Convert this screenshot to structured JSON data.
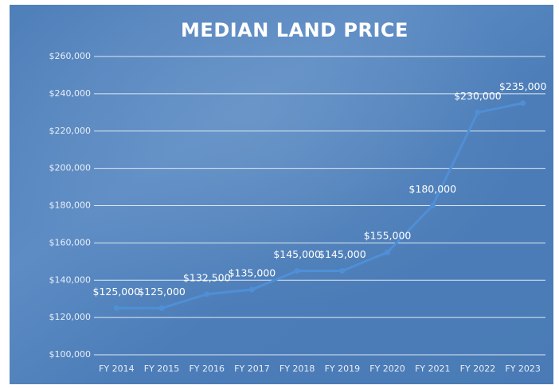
{
  "chart_data": {
    "type": "line",
    "title": "MEDIAN LAND PRICE",
    "categories": [
      "FY 2014",
      "FY 2015",
      "FY 2016",
      "FY 2017",
      "FY 2018",
      "FY 2019",
      "FY 2020",
      "FY 2021",
      "FY 2022",
      "FY 2023"
    ],
    "values": [
      125000,
      125000,
      132500,
      135000,
      145000,
      145000,
      155000,
      180000,
      230000,
      235000
    ],
    "value_labels": [
      "$125,000",
      "$125,000",
      "$132,500",
      "$135,000",
      "$145,000",
      "$145,000",
      "$155,000",
      "$180,000",
      "$230,000",
      "$235,000"
    ],
    "color": "#4f8fd6",
    "ylim": [
      100000,
      260000
    ],
    "yticks": [
      {
        "value": 100000,
        "label": "$100,000"
      },
      {
        "value": 120000,
        "label": "$120,000"
      },
      {
        "value": 140000,
        "label": "$140,000"
      },
      {
        "value": 160000,
        "label": "$160,000"
      },
      {
        "value": 180000,
        "label": "$180,000"
      },
      {
        "value": 200000,
        "label": "$200,000"
      },
      {
        "value": 220000,
        "label": "$220,000"
      },
      {
        "value": 240000,
        "label": "$240,000"
      },
      {
        "value": 260000,
        "label": "$260,000"
      }
    ],
    "grid": true
  }
}
